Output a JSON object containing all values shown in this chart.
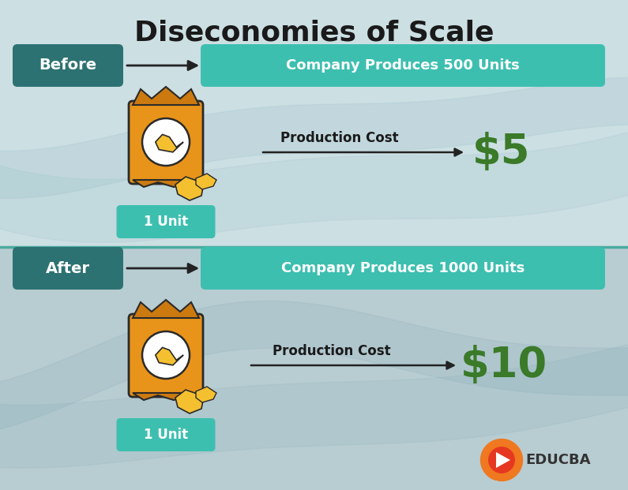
{
  "title": "Diseconomies of Scale",
  "title_fontsize": 26,
  "bg_top_color": "#ccdfe3",
  "bg_bottom_color": "#b8cdd2",
  "divider_color": "#4aaba0",
  "before_label": "Before",
  "after_label": "After",
  "dark_teal": "#2d7272",
  "light_teal": "#3dbfb0",
  "company_before": "Company Produces 500 Units",
  "company_after": "Company Produces 1000 Units",
  "unit_label": "1 Unit",
  "prod_cost_label": "Production Cost",
  "cost_before": "$5",
  "cost_after": "$10",
  "cost_color": "#3a7a28",
  "white": "#ffffff",
  "black": "#1a1a1a",
  "arrow_color": "#222222",
  "educba_text": "EDUCBA",
  "educba_red": "#e63820",
  "educba_orange": "#f07820"
}
